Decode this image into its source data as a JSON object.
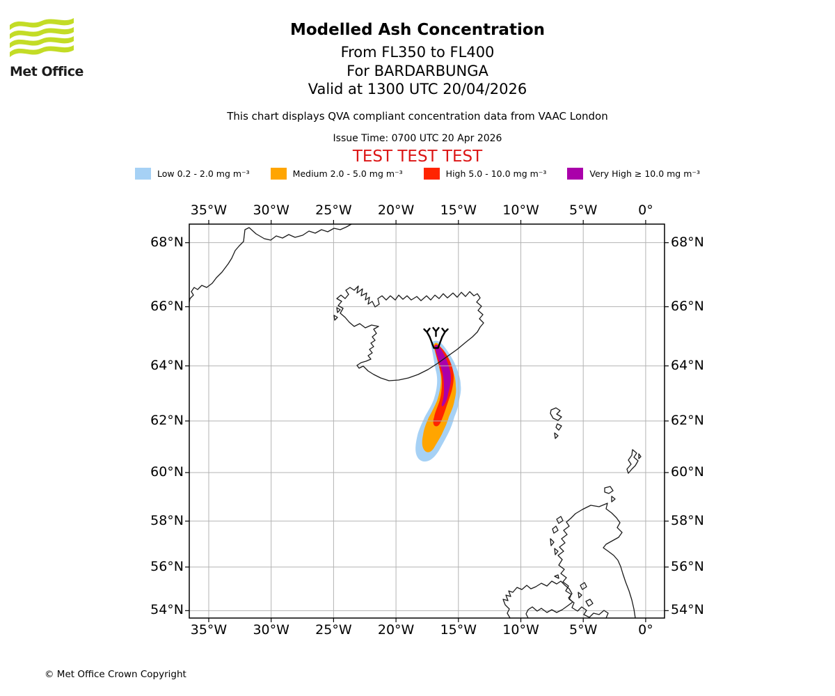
{
  "header": {
    "logo_text": "Met Office",
    "title": "Modelled Ash Concentration",
    "subtitle1": "From FL350 to FL400",
    "subtitle2": "For BARDARBUNGA",
    "subtitle3": "Valid at 1300 UTC 20/04/2026",
    "note": "This chart displays QVA compliant concentration data from VAAC London",
    "issue_time": "Issue Time: 0700 UTC 20 Apr 2026",
    "test_banner": "TEST TEST TEST"
  },
  "legend": {
    "items": [
      {
        "name": "Low",
        "label": "Low 0.2 - 2.0 mg m⁻³",
        "color": "#A6D1F5"
      },
      {
        "name": "Medium",
        "label": "Medium 2.0 - 5.0 mg m⁻³",
        "color": "#FFA500"
      },
      {
        "name": "High",
        "label": "High 5.0 - 10.0 mg m⁻³",
        "color": "#FF2400"
      },
      {
        "name": "Very High",
        "label": "Very High  ≥  10.0 mg m⁻³",
        "color": "#AA00AA"
      }
    ]
  },
  "footer": {
    "copyright": "© Met Office Crown Copyright"
  },
  "colors": {
    "test_red": "#DC1414",
    "logo_green": "#C3DC26",
    "grid": "#b3b3b3",
    "coast": "#1a1a1a"
  },
  "chart_data": {
    "type": "map",
    "projection": "mercator",
    "title": "Modelled Ash Concentration",
    "extent": {
      "lon_min": -36.56,
      "lon_max": 1.51,
      "lat_min": 53.65,
      "lat_max": 68.55
    },
    "grid": true,
    "lon_ticks": [
      {
        "lon": -35,
        "label": "35°W"
      },
      {
        "lon": -30,
        "label": "30°W"
      },
      {
        "lon": -25,
        "label": "25°W"
      },
      {
        "lon": -20,
        "label": "20°W"
      },
      {
        "lon": -15,
        "label": "15°W"
      },
      {
        "lon": -10,
        "label": "10°W"
      },
      {
        "lon": -5,
        "label": "5°W"
      },
      {
        "lon": 0,
        "label": "0°"
      }
    ],
    "lat_ticks": [
      {
        "lat": 68,
        "label": "68°N"
      },
      {
        "lat": 66,
        "label": "66°N"
      },
      {
        "lat": 64,
        "label": "64°N"
      },
      {
        "lat": 62,
        "label": "62°N"
      },
      {
        "lat": 60,
        "label": "60°N"
      },
      {
        "lat": 58,
        "label": "58°N"
      },
      {
        "lat": 56,
        "label": "56°N"
      },
      {
        "lat": 54,
        "label": "54°N"
      }
    ],
    "volcano": {
      "name": "BARDARBUNGA",
      "lon": -16.8,
      "lat": 64.62
    },
    "ash_plume": {
      "origin": {
        "lon": -16.8,
        "lat": 64.62
      },
      "description": "Plume extends south from the volcano over Iceland's south coast, bowing slightly east then back west; tail ends near 61.2N 17.5W",
      "levels": [
        {
          "name": "Low",
          "range_mg_m3": "0.2 - 2.0",
          "color": "#A6D1F5",
          "southern_extent_lat": 61.2
        },
        {
          "name": "Medium",
          "range_mg_m3": "2.0 - 5.0",
          "color": "#FFA500",
          "southern_extent_lat": 61.5
        },
        {
          "name": "High",
          "range_mg_m3": "5.0 - 10.0",
          "color": "#FF2400",
          "southern_extent_lat": 62.2
        },
        {
          "name": "Very High",
          "range_mg_m3": "≥ 10.0",
          "color": "#AA00AA",
          "southern_extent_lat": 62.9
        }
      ]
    },
    "visible_land": [
      "Greenland coast (top left)",
      "Iceland",
      "Faroe Islands",
      "Shetland",
      "Orkney",
      "Hebrides",
      "Scotland",
      "Northern Ireland",
      "Isle of Man",
      "NW England"
    ]
  }
}
